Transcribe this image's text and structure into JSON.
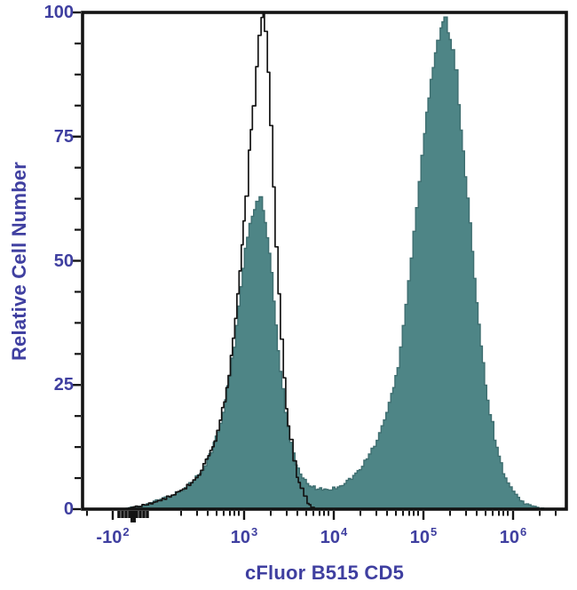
{
  "figure": {
    "background": "#ffffff",
    "frame_color": "#131313",
    "label_color": "#3f3fa0"
  },
  "chart_data": {
    "type": "area",
    "subtype": "flow-cytometry-histogram-overlay",
    "title": "",
    "xlabel": "cFluor B515 CD5",
    "ylabel": "Relative Cell Number",
    "x_scale": "biexponential-log",
    "ylim": [
      0,
      100
    ],
    "y_major_ticks": [
      0,
      25,
      50,
      75,
      100
    ],
    "y_minor_ticks": [
      6.25,
      12.5,
      18.75,
      31.25,
      37.5,
      43.75,
      56.25,
      62.5,
      68.75,
      81.25,
      87.5,
      93.75
    ],
    "x_major_ticks": [
      {
        "base": "-10",
        "exp": "2",
        "u": 0.0624
      },
      {
        "base": "10",
        "exp": "3",
        "u": 0.3339
      },
      {
        "base": "10",
        "exp": "4",
        "u": 0.5193
      },
      {
        "base": "10",
        "exp": "5",
        "u": 0.7046
      },
      {
        "base": "10",
        "exp": "6",
        "u": 0.8899
      }
    ],
    "x_zero_tick_u": 0.1046,
    "x_cluster_ticks_u": [
      0.0752,
      0.0826,
      0.0899,
      0.0972,
      0.1119,
      0.1193,
      0.1266,
      0.1339
    ],
    "x_minor_ticks_u": [
      0.0092,
      0.2037,
      0.2367,
      0.2587,
      0.2771,
      0.2917,
      0.3046,
      0.3138,
      0.3229,
      0.389,
      0.422,
      0.444,
      0.4624,
      0.4771,
      0.4899,
      0.4991,
      0.5083,
      0.5743,
      0.6073,
      0.6294,
      0.6477,
      0.6624,
      0.6752,
      0.6844,
      0.6936,
      0.7596,
      0.7927,
      0.8147,
      0.833,
      0.8477,
      0.8606,
      0.8697,
      0.8789,
      0.945,
      0.978
    ],
    "series": [
      {
        "name": "stained-filled",
        "fill": true,
        "color": "#4e8586",
        "edge_color": "#3e6e70",
        "jitter": 1.3,
        "points": [
          [
            0.086,
            0
          ],
          [
            0.108,
            0.5
          ],
          [
            0.132,
            1
          ],
          [
            0.16,
            2
          ],
          [
            0.187,
            3
          ],
          [
            0.206,
            4
          ],
          [
            0.224,
            5.5
          ],
          [
            0.242,
            7.5
          ],
          [
            0.257,
            10
          ],
          [
            0.27,
            13
          ],
          [
            0.283,
            17
          ],
          [
            0.294,
            22
          ],
          [
            0.303,
            27
          ],
          [
            0.312,
            33
          ],
          [
            0.321,
            41
          ],
          [
            0.33,
            49
          ],
          [
            0.339,
            55
          ],
          [
            0.349,
            59
          ],
          [
            0.358,
            61.5
          ],
          [
            0.365,
            62.5
          ],
          [
            0.372,
            60
          ],
          [
            0.38,
            55
          ],
          [
            0.389,
            47
          ],
          [
            0.398,
            37
          ],
          [
            0.407,
            28
          ],
          [
            0.417,
            20
          ],
          [
            0.428,
            13
          ],
          [
            0.439,
            9
          ],
          [
            0.453,
            6
          ],
          [
            0.472,
            4.5
          ],
          [
            0.49,
            4
          ],
          [
            0.512,
            4
          ],
          [
            0.536,
            5
          ],
          [
            0.554,
            6.3
          ],
          [
            0.572,
            8
          ],
          [
            0.591,
            11
          ],
          [
            0.607,
            14
          ],
          [
            0.622,
            18
          ],
          [
            0.637,
            23
          ],
          [
            0.65,
            29
          ],
          [
            0.661,
            37
          ],
          [
            0.672,
            46
          ],
          [
            0.683,
            56
          ],
          [
            0.694,
            66
          ],
          [
            0.705,
            76
          ],
          [
            0.714,
            83
          ],
          [
            0.723,
            89
          ],
          [
            0.732,
            94
          ],
          [
            0.739,
            97.5
          ],
          [
            0.747,
            99
          ],
          [
            0.754,
            96.5
          ],
          [
            0.762,
            93
          ],
          [
            0.769,
            88
          ],
          [
            0.776,
            81
          ],
          [
            0.785,
            72
          ],
          [
            0.794,
            62
          ],
          [
            0.804,
            52
          ],
          [
            0.813,
            42
          ],
          [
            0.822,
            33
          ],
          [
            0.831,
            25.5
          ],
          [
            0.84,
            19.5
          ],
          [
            0.85,
            14.5
          ],
          [
            0.859,
            10.5
          ],
          [
            0.868,
            7.5
          ],
          [
            0.877,
            5.2
          ],
          [
            0.888,
            3.4
          ],
          [
            0.899,
            2.2
          ],
          [
            0.912,
            1.2
          ],
          [
            0.927,
            0.6
          ],
          [
            0.943,
            0.2
          ],
          [
            0.958,
            0
          ]
        ]
      },
      {
        "name": "control-open-outline",
        "fill": false,
        "color": "#141414",
        "jitter": 0.9,
        "points": [
          [
            0.086,
            0
          ],
          [
            0.114,
            0.6
          ],
          [
            0.141,
            1.2
          ],
          [
            0.169,
            2.2
          ],
          [
            0.193,
            3.2
          ],
          [
            0.211,
            4.3
          ],
          [
            0.228,
            5.8
          ],
          [
            0.244,
            7.8
          ],
          [
            0.259,
            10.5
          ],
          [
            0.272,
            14
          ],
          [
            0.283,
            18
          ],
          [
            0.292,
            22
          ],
          [
            0.301,
            27
          ],
          [
            0.31,
            34
          ],
          [
            0.319,
            43
          ],
          [
            0.328,
            53
          ],
          [
            0.336,
            63
          ],
          [
            0.343,
            72
          ],
          [
            0.351,
            81
          ],
          [
            0.358,
            89
          ],
          [
            0.363,
            95
          ],
          [
            0.369,
            99
          ],
          [
            0.373,
            99.8
          ],
          [
            0.376,
            96
          ],
          [
            0.382,
            88
          ],
          [
            0.387,
            77
          ],
          [
            0.393,
            65
          ],
          [
            0.398,
            53
          ],
          [
            0.404,
            43
          ],
          [
            0.409,
            34
          ],
          [
            0.415,
            26
          ],
          [
            0.42,
            20
          ],
          [
            0.428,
            14
          ],
          [
            0.435,
            9.5
          ],
          [
            0.442,
            6.5
          ],
          [
            0.45,
            4.2
          ],
          [
            0.457,
            2.5
          ],
          [
            0.464,
            1.2
          ],
          [
            0.472,
            0.4
          ],
          [
            0.479,
            0
          ]
        ]
      }
    ]
  }
}
